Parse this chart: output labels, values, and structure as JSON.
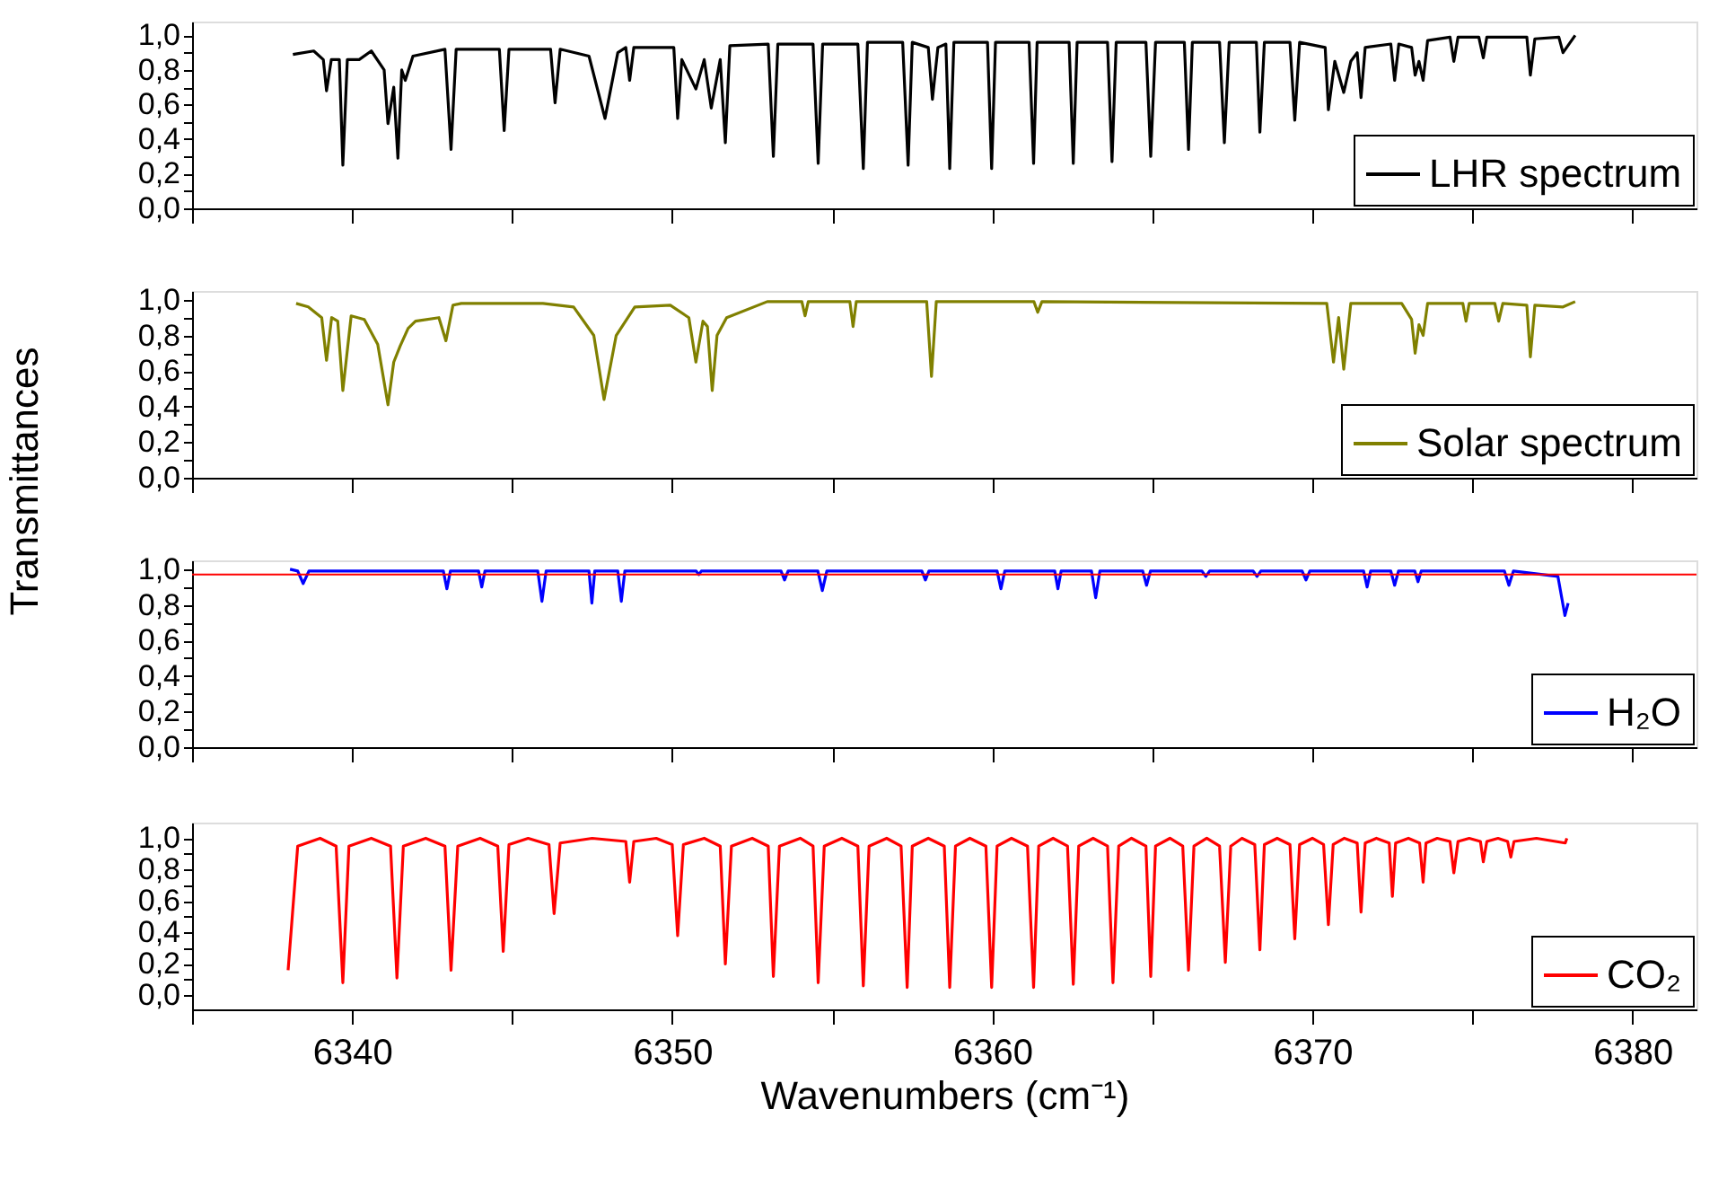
{
  "chart_data": [
    {
      "type": "line",
      "ylabel": "Transmittances",
      "xlim": [
        6335,
        6382
      ],
      "ylim": [
        0,
        1.08
      ],
      "tick_labels": "y",
      "grid": false,
      "legend": "bottom right",
      "xticks": [
        {
          "value": 6335,
          "label": null
        },
        {
          "value": 6340,
          "label": null
        },
        {
          "value": 6345,
          "label": null
        },
        {
          "value": 6350,
          "label": null
        },
        {
          "value": 6355,
          "label": null
        },
        {
          "value": 6360,
          "label": null
        },
        {
          "value": 6365,
          "label": null
        },
        {
          "value": 6370,
          "label": null
        },
        {
          "value": 6375,
          "label": null
        },
        {
          "value": 6380,
          "label": null
        }
      ],
      "yticks": [
        {
          "value": 0,
          "label": "0,0"
        },
        {
          "value": 0.1,
          "label": null
        },
        {
          "value": 0.2,
          "label": "0,2"
        },
        {
          "value": 0.3,
          "label": null
        },
        {
          "value": 0.4,
          "label": "0,4"
        },
        {
          "value": 0.5,
          "label": null
        },
        {
          "value": 0.6,
          "label": "0,6"
        },
        {
          "value": 0.7,
          "label": null
        },
        {
          "value": 0.8,
          "label": "0,8"
        },
        {
          "value": 0.9,
          "label": null
        },
        {
          "value": 1.0,
          "label": "1,0"
        }
      ],
      "series": [
        {
          "name": "LHR spectrum",
          "color": "#000000",
          "x": [
            6338.15,
            6338.8,
            6339.1,
            6339.2,
            6339.35,
            6339.6,
            6339.71,
            6339.85,
            6340.22,
            6340.6,
            6341.0,
            6341.12,
            6341.3,
            6341.43,
            6341.55,
            6341.66,
            6341.9,
            6342.9,
            6343.09,
            6343.25,
            6344.6,
            6344.75,
            6344.9,
            6346.2,
            6346.34,
            6346.5,
            6347.4,
            6347.9,
            6348.3,
            6348.55,
            6348.67,
            6348.8,
            6350.05,
            6350.17,
            6350.3,
            6350.74,
            6351.0,
            6351.22,
            6351.5,
            6351.66,
            6351.8,
            6353.0,
            6353.16,
            6353.3,
            6354.4,
            6354.56,
            6354.7,
            6355.8,
            6355.97,
            6356.1,
            6357.2,
            6357.37,
            6357.5,
            6358.0,
            6358.13,
            6358.3,
            6358.55,
            6358.67,
            6358.8,
            6359.85,
            6359.98,
            6360.1,
            6361.15,
            6361.29,
            6361.4,
            6362.4,
            6362.53,
            6362.65,
            6363.6,
            6363.74,
            6363.87,
            6364.8,
            6364.95,
            6365.1,
            6366.0,
            6366.13,
            6366.25,
            6367.1,
            6367.25,
            6367.4,
            6368.25,
            6368.36,
            6368.5,
            6369.3,
            6369.45,
            6369.6,
            6370.4,
            6370.5,
            6370.7,
            6370.98,
            6371.2,
            6371.4,
            6371.52,
            6371.65,
            6372.45,
            6372.57,
            6372.7,
            6373.1,
            6373.21,
            6373.33,
            6373.46,
            6373.6,
            6374.3,
            6374.42,
            6374.55,
            6375.2,
            6375.34,
            6375.45,
            6376.7,
            6376.81,
            6376.95,
            6377.7,
            6377.83,
            6378.21
          ],
          "values": [
            0.89,
            0.91,
            0.86,
            0.68,
            0.86,
            0.86,
            0.25,
            0.86,
            0.86,
            0.91,
            0.8,
            0.49,
            0.7,
            0.29,
            0.8,
            0.74,
            0.88,
            0.92,
            0.34,
            0.92,
            0.92,
            0.45,
            0.92,
            0.92,
            0.61,
            0.92,
            0.88,
            0.52,
            0.9,
            0.93,
            0.74,
            0.93,
            0.93,
            0.52,
            0.86,
            0.69,
            0.86,
            0.58,
            0.86,
            0.38,
            0.94,
            0.95,
            0.3,
            0.95,
            0.95,
            0.26,
            0.95,
            0.95,
            0.23,
            0.96,
            0.96,
            0.25,
            0.96,
            0.93,
            0.63,
            0.93,
            0.95,
            0.23,
            0.96,
            0.96,
            0.23,
            0.96,
            0.96,
            0.26,
            0.96,
            0.96,
            0.26,
            0.96,
            0.96,
            0.27,
            0.96,
            0.96,
            0.3,
            0.96,
            0.96,
            0.34,
            0.96,
            0.96,
            0.38,
            0.96,
            0.96,
            0.44,
            0.96,
            0.96,
            0.51,
            0.96,
            0.93,
            0.57,
            0.85,
            0.67,
            0.85,
            0.9,
            0.64,
            0.93,
            0.95,
            0.74,
            0.95,
            0.93,
            0.77,
            0.85,
            0.74,
            0.97,
            0.99,
            0.85,
            0.99,
            0.99,
            0.87,
            0.99,
            0.99,
            0.77,
            0.98,
            0.99,
            0.9,
            1.0
          ]
        }
      ]
    },
    {
      "type": "line",
      "xlim": [
        6335,
        6382
      ],
      "ylim": [
        0,
        1.05
      ],
      "tick_labels": "y",
      "grid": false,
      "legend": "bottom right",
      "xticks": [
        {
          "value": 6335,
          "label": null
        },
        {
          "value": 6340,
          "label": null
        },
        {
          "value": 6345,
          "label": null
        },
        {
          "value": 6350,
          "label": null
        },
        {
          "value": 6355,
          "label": null
        },
        {
          "value": 6360,
          "label": null
        },
        {
          "value": 6365,
          "label": null
        },
        {
          "value": 6370,
          "label": null
        },
        {
          "value": 6375,
          "label": null
        },
        {
          "value": 6380,
          "label": null
        }
      ],
      "yticks": [
        {
          "value": 0,
          "label": "0,0"
        },
        {
          "value": 0.1,
          "label": null
        },
        {
          "value": 0.2,
          "label": "0,2"
        },
        {
          "value": 0.3,
          "label": null
        },
        {
          "value": 0.4,
          "label": "0,4"
        },
        {
          "value": 0.5,
          "label": null
        },
        {
          "value": 0.6,
          "label": "0,6"
        },
        {
          "value": 0.7,
          "label": null
        },
        {
          "value": 0.8,
          "label": "0,8"
        },
        {
          "value": 0.9,
          "label": null
        },
        {
          "value": 1.0,
          "label": "1,0"
        }
      ],
      "series": [
        {
          "name": "Solar spectrum",
          "color": "#808000",
          "x": [
            6338.25,
            6338.63,
            6339.05,
            6339.2,
            6339.36,
            6339.55,
            6339.71,
            6339.97,
            6340.38,
            6340.8,
            6341.12,
            6341.3,
            6341.5,
            6341.75,
            6341.98,
            6342.71,
            6342.93,
            6343.15,
            6343.41,
            6345.96,
            6346.92,
            6347.55,
            6347.87,
            6348.25,
            6348.83,
            6349.94,
            6350.52,
            6350.74,
            6350.96,
            6351.1,
            6351.25,
            6351.4,
            6351.7,
            6352.97,
            6354.05,
            6354.15,
            6354.25,
            6355.55,
            6355.65,
            6355.75,
            6357.95,
            6358.1,
            6358.25,
            6361.3,
            6361.42,
            6361.55,
            6370.45,
            6370.66,
            6370.82,
            6370.98,
            6371.2,
            6372.79,
            6373.1,
            6373.21,
            6373.33,
            6373.46,
            6373.6,
            6374.7,
            6374.8,
            6374.9,
            6375.7,
            6375.82,
            6375.95,
            6376.7,
            6376.81,
            6376.95,
            6377.83,
            6378.21
          ],
          "values": [
            0.98,
            0.96,
            0.9,
            0.66,
            0.9,
            0.88,
            0.49,
            0.91,
            0.89,
            0.75,
            0.41,
            0.65,
            0.74,
            0.84,
            0.88,
            0.9,
            0.77,
            0.97,
            0.98,
            0.98,
            0.96,
            0.8,
            0.44,
            0.8,
            0.96,
            0.97,
            0.9,
            0.65,
            0.88,
            0.85,
            0.49,
            0.8,
            0.9,
            0.99,
            0.99,
            0.91,
            0.99,
            0.99,
            0.85,
            0.99,
            0.99,
            0.57,
            0.99,
            0.99,
            0.93,
            0.99,
            0.98,
            0.65,
            0.9,
            0.61,
            0.98,
            0.98,
            0.89,
            0.7,
            0.86,
            0.8,
            0.98,
            0.98,
            0.88,
            0.98,
            0.98,
            0.88,
            0.98,
            0.97,
            0.68,
            0.97,
            0.96,
            0.99
          ]
        }
      ]
    },
    {
      "type": "line",
      "xlim": [
        6335,
        6382
      ],
      "ylim": [
        0,
        1.05
      ],
      "tick_labels": "y",
      "grid": false,
      "legend": "bottom right",
      "ref_lines": [
        {
          "axis": "y",
          "value": 0.97,
          "color": "#ff0000"
        }
      ],
      "xticks": [
        {
          "value": 6335,
          "label": null
        },
        {
          "value": 6340,
          "label": null
        },
        {
          "value": 6345,
          "label": null
        },
        {
          "value": 6350,
          "label": null
        },
        {
          "value": 6355,
          "label": null
        },
        {
          "value": 6360,
          "label": null
        },
        {
          "value": 6365,
          "label": null
        },
        {
          "value": 6370,
          "label": null
        },
        {
          "value": 6375,
          "label": null
        },
        {
          "value": 6380,
          "label": null
        }
      ],
      "yticks": [
        {
          "value": 0,
          "label": "0,0"
        },
        {
          "value": 0.1,
          "label": null
        },
        {
          "value": 0.2,
          "label": "0,2"
        },
        {
          "value": 0.3,
          "label": null
        },
        {
          "value": 0.4,
          "label": "0,4"
        },
        {
          "value": 0.5,
          "label": null
        },
        {
          "value": 0.6,
          "label": "0,6"
        },
        {
          "value": 0.7,
          "label": null
        },
        {
          "value": 0.8,
          "label": "0,8"
        },
        {
          "value": 0.9,
          "label": null
        },
        {
          "value": 1.0,
          "label": "1,0"
        }
      ],
      "series": [
        {
          "name": "H₂O",
          "color": "#0000ff",
          "x": [
            6338.06,
            6338.3,
            6338.47,
            6338.65,
            6342.85,
            6342.96,
            6343.07,
            6343.95,
            6344.05,
            6344.15,
            6345.8,
            6345.93,
            6346.06,
            6347.4,
            6347.49,
            6347.58,
            6348.3,
            6348.41,
            6348.52,
            6350.75,
            6350.83,
            6350.91,
            6353.4,
            6353.51,
            6353.62,
            6354.55,
            6354.69,
            6354.83,
            6357.8,
            6357.91,
            6358.02,
            6360.15,
            6360.27,
            6360.39,
            6361.95,
            6362.05,
            6362.15,
            6363.1,
            6363.23,
            6363.36,
            6364.7,
            6364.82,
            6364.94,
            6366.55,
            6366.67,
            6366.79,
            6368.15,
            6368.27,
            6368.39,
            6369.68,
            6369.8,
            6369.92,
            6371.6,
            6371.71,
            6371.82,
            6372.45,
            6372.57,
            6372.69,
            6373.2,
            6373.3,
            6373.4,
            6376.0,
            6376.14,
            6376.28,
            6377.67,
            6377.89,
            6377.99
          ],
          "values": [
            1.0,
            0.99,
            0.92,
            0.99,
            0.99,
            0.89,
            0.99,
            0.99,
            0.9,
            0.99,
            0.99,
            0.82,
            0.99,
            0.99,
            0.81,
            0.99,
            0.99,
            0.82,
            0.99,
            0.99,
            0.97,
            0.99,
            0.99,
            0.94,
            0.99,
            0.99,
            0.88,
            0.99,
            0.99,
            0.94,
            0.99,
            0.99,
            0.89,
            0.99,
            0.99,
            0.89,
            0.99,
            0.99,
            0.84,
            0.99,
            0.99,
            0.91,
            0.99,
            0.99,
            0.96,
            0.99,
            0.99,
            0.96,
            0.99,
            0.99,
            0.94,
            0.99,
            0.99,
            0.9,
            0.99,
            0.99,
            0.91,
            0.99,
            0.99,
            0.93,
            0.99,
            0.99,
            0.91,
            0.99,
            0.96,
            0.74,
            0.81
          ]
        }
      ]
    },
    {
      "type": "line",
      "xlabel": "Wavenumbers (cm⁻¹)",
      "xlim": [
        6335,
        6382
      ],
      "ylim": [
        -0.09,
        1.1
      ],
      "grid": false,
      "legend": "bottom right",
      "xticks": [
        {
          "value": 6335,
          "label": null
        },
        6340,
        {
          "value": 6345,
          "label": null
        },
        6350,
        {
          "value": 6355,
          "label": null
        },
        6360,
        {
          "value": 6365,
          "label": null
        },
        6370,
        {
          "value": 6375,
          "label": null
        },
        6380
      ],
      "yticks": [
        {
          "value": 0,
          "label": "0,0"
        },
        {
          "value": 0.1,
          "label": null
        },
        {
          "value": 0.2,
          "label": "0,2"
        },
        {
          "value": 0.3,
          "label": null
        },
        {
          "value": 0.4,
          "label": "0,4"
        },
        {
          "value": 0.5,
          "label": null
        },
        {
          "value": 0.6,
          "label": "0,6"
        },
        {
          "value": 0.7,
          "label": null
        },
        {
          "value": 0.8,
          "label": "0,8"
        },
        {
          "value": 0.9,
          "label": null
        },
        {
          "value": 1.0,
          "label": "1,0"
        }
      ],
      "series": [
        {
          "name": "CO₂",
          "color": "#ff0000",
          "x": [
            6338.0,
            6338.3,
            6339.0,
            6339.5,
            6339.71,
            6339.9,
            6340.6,
            6341.2,
            6341.4,
            6341.6,
            6342.3,
            6342.9,
            6343.09,
            6343.3,
            6344.0,
            6344.55,
            6344.72,
            6344.9,
            6345.5,
            6346.15,
            6346.31,
            6346.5,
            6347.5,
            6348.55,
            6348.67,
            6348.8,
            6349.5,
            6350.0,
            6350.17,
            6350.35,
            6351.0,
            6351.5,
            6351.66,
            6351.85,
            6352.5,
            6353.0,
            6353.16,
            6353.35,
            6354.0,
            6354.4,
            6354.56,
            6354.75,
            6355.3,
            6355.8,
            6355.97,
            6356.15,
            6356.7,
            6357.15,
            6357.34,
            6357.5,
            6358.0,
            6358.5,
            6358.67,
            6358.85,
            6359.3,
            6359.8,
            6359.98,
            6360.15,
            6360.6,
            6361.1,
            6361.29,
            6361.45,
            6361.9,
            6362.35,
            6362.53,
            6362.7,
            6363.15,
            6363.6,
            6363.77,
            6363.95,
            6364.35,
            6364.8,
            6364.95,
            6365.1,
            6365.55,
            6365.95,
            6366.13,
            6366.3,
            6366.7,
            6367.1,
            6367.28,
            6367.45,
            6367.8,
            6368.2,
            6368.36,
            6368.5,
            6368.9,
            6369.3,
            6369.45,
            6369.6,
            6370.0,
            6370.35,
            6370.5,
            6370.65,
            6371.0,
            6371.4,
            6371.52,
            6371.65,
            6372.0,
            6372.4,
            6372.5,
            6372.6,
            6373.0,
            6373.35,
            6373.46,
            6373.55,
            6373.9,
            6374.3,
            6374.42,
            6374.55,
            6374.9,
            6375.25,
            6375.34,
            6375.45,
            6375.8,
            6376.1,
            6376.2,
            6376.3,
            6377.0,
            6377.9,
            6377.95
          ],
          "values": [
            0.16,
            0.95,
            1.0,
            0.95,
            0.08,
            0.95,
            1.0,
            0.95,
            0.11,
            0.95,
            1.0,
            0.95,
            0.16,
            0.95,
            1.0,
            0.95,
            0.28,
            0.96,
            1.0,
            0.96,
            0.52,
            0.97,
            1.0,
            0.98,
            0.72,
            0.98,
            1.0,
            0.96,
            0.38,
            0.96,
            1.0,
            0.95,
            0.2,
            0.95,
            1.0,
            0.95,
            0.12,
            0.95,
            1.0,
            0.95,
            0.08,
            0.95,
            1.0,
            0.95,
            0.06,
            0.95,
            1.0,
            0.95,
            0.05,
            0.95,
            1.0,
            0.95,
            0.05,
            0.95,
            1.0,
            0.95,
            0.05,
            0.95,
            1.0,
            0.95,
            0.05,
            0.95,
            1.0,
            0.95,
            0.07,
            0.95,
            1.0,
            0.95,
            0.08,
            0.95,
            1.0,
            0.95,
            0.12,
            0.95,
            1.0,
            0.95,
            0.16,
            0.95,
            1.0,
            0.95,
            0.21,
            0.95,
            1.0,
            0.96,
            0.29,
            0.96,
            1.0,
            0.96,
            0.36,
            0.96,
            1.0,
            0.96,
            0.45,
            0.96,
            1.0,
            0.97,
            0.53,
            0.97,
            1.0,
            0.97,
            0.63,
            0.97,
            1.0,
            0.97,
            0.72,
            0.97,
            1.0,
            0.98,
            0.78,
            0.98,
            1.0,
            0.98,
            0.85,
            0.98,
            1.0,
            0.98,
            0.88,
            0.98,
            1.0,
            0.97,
            1.0
          ]
        }
      ]
    }
  ]
}
